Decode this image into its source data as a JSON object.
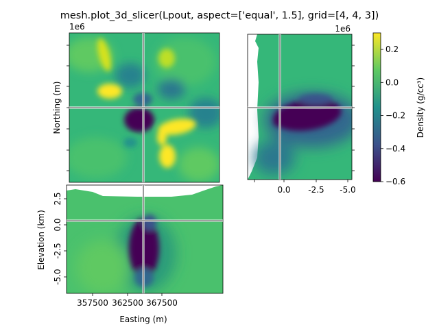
{
  "chart_data": [
    {
      "type": "heatmap",
      "panel": "top-left",
      "title": "mesh.plot_3d_slicer(Lpout, aspect=['equal', 1.5], grid=[4, 4, 3])",
      "ylabel": "Northing (m)",
      "y_offset_label": "1e6",
      "colormap": "viridis",
      "description_values": "plan-view slice of density; negative low near center, positive highs north-west and south-east",
      "features": [
        {
          "value": 0.3,
          "shape": "positive elongated body",
          "location": "north-west"
        },
        {
          "value": 0.3,
          "shape": "positive body",
          "location": "north-east"
        },
        {
          "value": -0.6,
          "shape": "negative body",
          "location": "center"
        },
        {
          "value": 0.3,
          "shape": "positive hook-shaped body",
          "location": "south-east"
        }
      ]
    },
    {
      "type": "heatmap",
      "panel": "top-right",
      "x_offset_label": "1e6",
      "xticks": [
        "0.0",
        "-2.5",
        "-5.0"
      ],
      "colormap": "viridis"
    },
    {
      "type": "heatmap",
      "panel": "bottom",
      "xlabel": "Easting (m)",
      "ylabel": "Elevation (km)",
      "xticks": [
        "357500",
        "362500",
        "367500"
      ],
      "yticks": [
        "2.5",
        "0.0",
        "-2.5",
        "-5.0"
      ],
      "colormap": "viridis"
    }
  ],
  "colorbar": {
    "label": "Density (g/cc³)",
    "ticks": [
      "0.2",
      "0.0",
      "−0.2",
      "−0.4",
      "−0.6"
    ],
    "tick_values": [
      0.2,
      0.0,
      -0.2,
      -0.4,
      -0.6
    ],
    "range": [
      -0.6,
      0.3
    ],
    "colors": [
      "#440154",
      "#3b528b",
      "#21918c",
      "#5ec962",
      "#fde725"
    ]
  },
  "colors": {
    "background_field": "#35b779",
    "positive": "#fde725",
    "negative": "#440154"
  }
}
